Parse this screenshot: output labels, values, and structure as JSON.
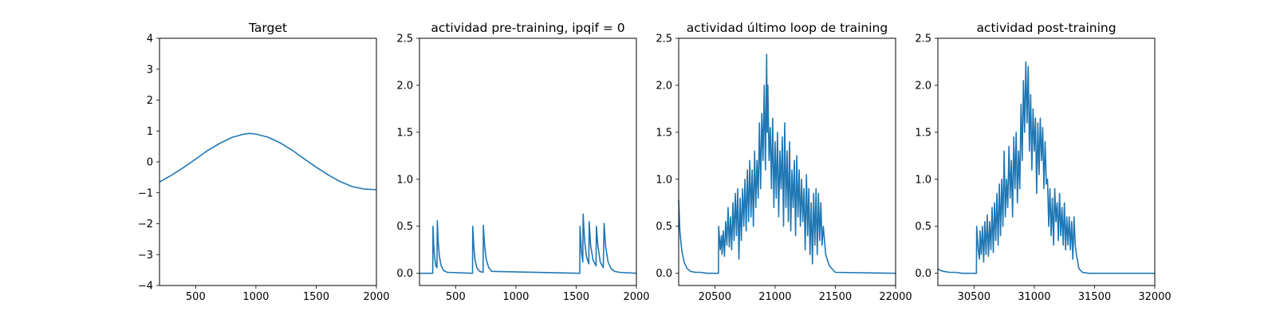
{
  "chart_data": [
    {
      "type": "line",
      "title": "Target",
      "xlim": [
        200,
        2000
      ],
      "ylim": [
        -4,
        4
      ],
      "xticks": [
        500,
        1000,
        1500,
        2000
      ],
      "yticks": [
        -4,
        -3,
        -2,
        -1,
        0,
        1,
        2,
        3,
        4
      ],
      "ytick_labels": [
        "−4",
        "−3",
        "−2",
        "−1",
        "0",
        "1",
        "2",
        "3",
        "4"
      ],
      "series": [
        {
          "color": "#1f77b4",
          "x": [
            200,
            300,
            400,
            500,
            600,
            700,
            800,
            900,
            950,
            1000,
            1100,
            1200,
            1300,
            1400,
            1500,
            1600,
            1700,
            1800,
            1900,
            2000
          ],
          "y": [
            -0.65,
            -0.43,
            -0.18,
            0.09,
            0.37,
            0.6,
            0.79,
            0.9,
            0.92,
            0.9,
            0.8,
            0.62,
            0.38,
            0.1,
            -0.17,
            -0.42,
            -0.64,
            -0.8,
            -0.88,
            -0.9
          ]
        }
      ]
    },
    {
      "type": "line",
      "title": "actividad pre-training, ipqif = 0",
      "xlim": [
        200,
        2000
      ],
      "ylim": [
        -0.13,
        2.5
      ],
      "xticks": [
        500,
        1000,
        1500,
        2000
      ],
      "yticks": [
        0.0,
        0.5,
        1.0,
        1.5,
        2.0,
        2.5
      ],
      "ytick_labels": [
        "0.0",
        "0.5",
        "1.0",
        "1.5",
        "2.0",
        "2.5"
      ],
      "series": [
        {
          "color": "#1f77b4",
          "x": [
            200,
            310,
            312,
            318,
            325,
            335,
            345,
            348,
            355,
            365,
            380,
            400,
            430,
            640,
            642,
            650,
            660,
            675,
            700,
            728,
            730,
            740,
            755,
            775,
            800,
            1530,
            1532,
            1545,
            1555,
            1558,
            1570,
            1585,
            1605,
            1608,
            1620,
            1640,
            1665,
            1668,
            1680,
            1700,
            1725,
            1732,
            1745,
            1765,
            1790,
            1820,
            1860,
            2000
          ],
          "y": [
            0,
            0,
            0.5,
            0.3,
            0.18,
            0.08,
            0.06,
            0.56,
            0.34,
            0.18,
            0.08,
            0.03,
            0.01,
            0,
            0.5,
            0.3,
            0.15,
            0.06,
            0.02,
            0.01,
            0.51,
            0.3,
            0.14,
            0.06,
            0.02,
            0,
            0.5,
            0.22,
            0.12,
            0.63,
            0.35,
            0.18,
            0.1,
            0.55,
            0.3,
            0.14,
            0.08,
            0.5,
            0.3,
            0.12,
            0.06,
            0.53,
            0.28,
            0.12,
            0.05,
            0.02,
            0.01,
            0
          ]
        }
      ]
    },
    {
      "type": "line",
      "title": "actividad último loop de training",
      "xlim": [
        20200,
        22000
      ],
      "ylim": [
        -0.13,
        2.5
      ],
      "xticks": [
        20500,
        21000,
        21500,
        22000
      ],
      "yticks": [
        0.0,
        0.5,
        1.0,
        1.5,
        2.0,
        2.5
      ],
      "ytick_labels": [
        "0.0",
        "0.5",
        "1.0",
        "1.5",
        "2.0",
        "2.5"
      ],
      "series": [
        {
          "color": "#1f77b4",
          "x": [
            20200,
            20210,
            20225,
            20245,
            20270,
            20300,
            20340,
            20380,
            20440,
            20530,
            20532,
            20545,
            20555,
            20560,
            20570,
            20580,
            20590,
            20600,
            20610,
            20620,
            20630,
            20640,
            20650,
            20660,
            20670,
            20680,
            20690,
            20700,
            20710,
            20720,
            20730,
            20740,
            20750,
            20760,
            20770,
            20780,
            20790,
            20800,
            20810,
            20820,
            20830,
            20840,
            20850,
            20860,
            20870,
            20880,
            20890,
            20900,
            20910,
            20920,
            20930,
            20935,
            20940,
            20950,
            20960,
            20970,
            20980,
            20990,
            21000,
            21010,
            21020,
            21030,
            21040,
            21050,
            21060,
            21070,
            21080,
            21090,
            21100,
            21110,
            21120,
            21130,
            21140,
            21150,
            21160,
            21170,
            21180,
            21190,
            21200,
            21210,
            21220,
            21230,
            21240,
            21250,
            21260,
            21270,
            21280,
            21290,
            21300,
            21310,
            21320,
            21330,
            21340,
            21350,
            21360,
            21370,
            21380,
            21390,
            21400,
            21420,
            21450,
            21500,
            22000
          ],
          "y": [
            0.78,
            0.45,
            0.25,
            0.12,
            0.05,
            0.02,
            0.01,
            0.01,
            0,
            0,
            0.5,
            0.25,
            0.4,
            0.2,
            0.45,
            0.18,
            0.55,
            0.3,
            0.7,
            0.28,
            0.6,
            0.25,
            0.75,
            0.35,
            0.85,
            0.4,
            0.9,
            0.15,
            0.8,
            0.35,
            0.9,
            0.5,
            1.0,
            0.45,
            1.1,
            0.55,
            1.2,
            0.6,
            1.1,
            0.5,
            1.3,
            0.7,
            1.2,
            0.8,
            1.6,
            0.9,
            1.7,
            1.2,
            2.0,
            1.1,
            2.33,
            1.5,
            2.0,
            1.2,
            1.55,
            0.9,
            1.65,
            0.7,
            1.4,
            0.8,
            1.5,
            0.6,
            1.3,
            0.9,
            1.45,
            0.5,
            1.6,
            0.7,
            1.3,
            0.55,
            1.4,
            0.45,
            1.1,
            0.7,
            1.2,
            0.4,
            1.25,
            0.6,
            1.1,
            0.5,
            1.0,
            0.55,
            0.9,
            0.25,
            1.05,
            0.4,
            0.9,
            0.2,
            0.75,
            0.1,
            0.85,
            0.3,
            0.9,
            0.2,
            0.85,
            0.35,
            0.75,
            0.3,
            0.5,
            0.2,
            0.08,
            0.01,
            0
          ]
        }
      ]
    },
    {
      "type": "line",
      "title": "actividad post-training",
      "xlim": [
        30200,
        32000
      ],
      "ylim": [
        -0.13,
        2.5
      ],
      "xticks": [
        30500,
        31000,
        31500,
        32000
      ],
      "yticks": [
        0.0,
        0.5,
        1.0,
        1.5,
        2.0,
        2.5
      ],
      "ytick_labels": [
        "0.0",
        "0.5",
        "1.0",
        "1.5",
        "2.0",
        "2.5"
      ],
      "series": [
        {
          "color": "#1f77b4",
          "x": [
            30200,
            30220,
            30250,
            30300,
            30350,
            30400,
            30520,
            30522,
            30535,
            30545,
            30550,
            30560,
            30570,
            30580,
            30590,
            30600,
            30610,
            30620,
            30630,
            30640,
            30650,
            30660,
            30670,
            30680,
            30690,
            30700,
            30710,
            30720,
            30730,
            30740,
            30750,
            30760,
            30770,
            30780,
            30790,
            30800,
            30810,
            30820,
            30830,
            30840,
            30850,
            30860,
            30870,
            30880,
            30890,
            30900,
            30910,
            30920,
            30930,
            30940,
            30950,
            30960,
            30970,
            30980,
            30990,
            31000,
            31010,
            31020,
            31030,
            31040,
            31050,
            31060,
            31070,
            31080,
            31090,
            31100,
            31110,
            31120,
            31130,
            31140,
            31150,
            31160,
            31170,
            31180,
            31190,
            31200,
            31210,
            31220,
            31230,
            31240,
            31250,
            31260,
            31270,
            31280,
            31290,
            31300,
            31310,
            31320,
            31330,
            31340,
            31350,
            31370,
            31400,
            31450,
            32000
          ],
          "y": [
            0.05,
            0.03,
            0.02,
            0.01,
            0.01,
            0,
            0,
            0.5,
            0.25,
            0.15,
            0.45,
            0.2,
            0.5,
            0.12,
            0.55,
            0.2,
            0.62,
            0.18,
            0.55,
            0.25,
            0.7,
            0.22,
            0.75,
            0.35,
            0.85,
            0.3,
            0.95,
            0.4,
            1.0,
            0.5,
            1.3,
            0.6,
            1.0,
            0.7,
            1.35,
            0.8,
            1.2,
            0.6,
            1.45,
            0.9,
            1.5,
            0.75,
            1.3,
            0.9,
            1.8,
            1.2,
            2.05,
            1.5,
            2.25,
            1.6,
            2.2,
            1.3,
            1.9,
            1.1,
            1.75,
            1.3,
            1.65,
            0.85,
            1.6,
            1.05,
            1.65,
            1.2,
            1.55,
            0.9,
            1.4,
            0.95,
            1.0,
            0.5,
            0.9,
            0.4,
            0.8,
            0.3,
            0.9,
            0.55,
            0.75,
            0.35,
            0.85,
            0.4,
            0.7,
            0.3,
            0.75,
            0.25,
            0.6,
            0.3,
            0.6,
            0.25,
            0.55,
            0.15,
            0.6,
            0.3,
            0.2,
            0.05,
            0.01,
            0,
            0
          ]
        }
      ]
    }
  ]
}
